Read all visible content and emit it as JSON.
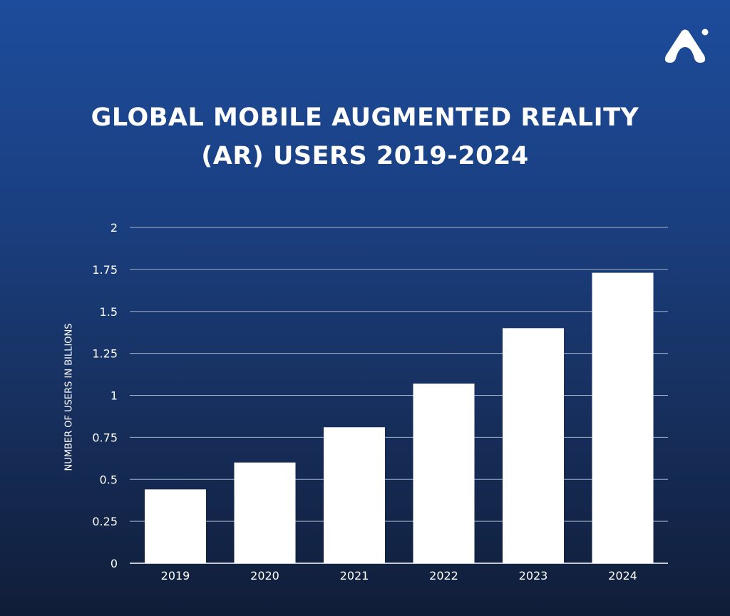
{
  "logo": {
    "icon": "brand-a-logo"
  },
  "chart_data": {
    "type": "bar",
    "title_lines": [
      "GLOBAL MOBILE AUGMENTED REALITY",
      "(AR) USERS 2019-2024"
    ],
    "categories": [
      "2019",
      "2020",
      "2021",
      "2022",
      "2023",
      "2024"
    ],
    "values": [
      0.44,
      0.6,
      0.81,
      1.07,
      1.4,
      1.73
    ],
    "xlabel": "",
    "ylabel": "NUMBER OF USERS IN BILLIONS",
    "ylim": [
      0,
      2
    ],
    "yticks": [
      "0",
      "0.25",
      "0.5",
      "0.75",
      "1",
      "1.25",
      "1.5",
      "1.75",
      "2"
    ],
    "grid": true,
    "colors": {
      "bar": "#ffffff",
      "grid": "#c9d3e6"
    }
  }
}
